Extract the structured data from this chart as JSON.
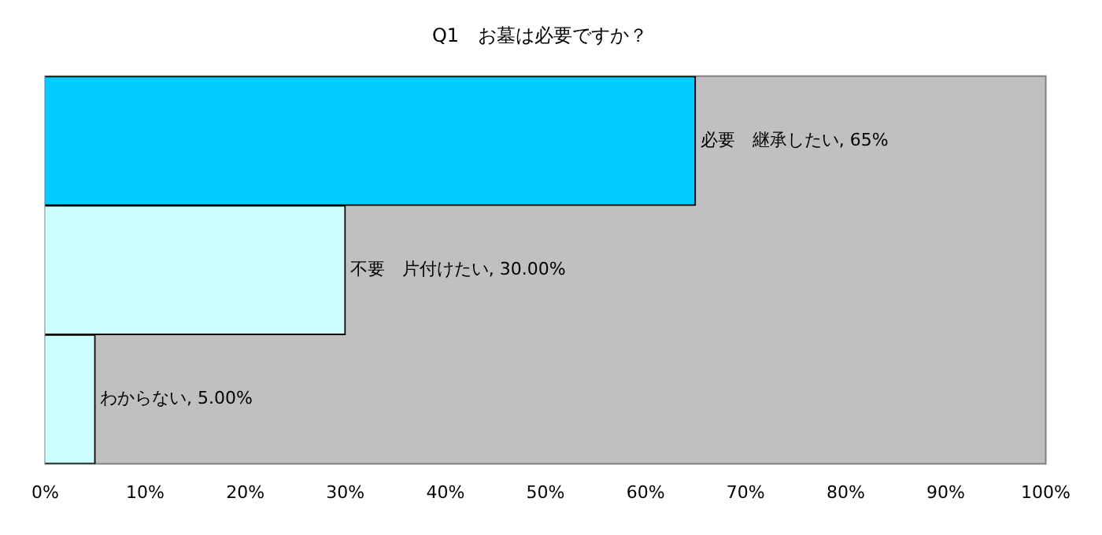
{
  "chart_data": {
    "type": "bar",
    "orientation": "horizontal",
    "title": "Q1　お墓は必要ですか？",
    "categories": [
      null,
      null,
      null
    ],
    "values": [
      65,
      30,
      5
    ],
    "colors": [
      "#00ccff",
      "#ccffff",
      "#ccffff"
    ],
    "value_labels": [
      "必要　継承したい, 65%",
      "不要　片付けたい, 30.00%",
      "わからない, 5.00%"
    ],
    "xlim": [
      0,
      100
    ],
    "xticks": [
      {
        "value": 0,
        "label": "0%"
      },
      {
        "value": 10,
        "label": "10%"
      },
      {
        "value": 20,
        "label": "20%"
      },
      {
        "value": 30,
        "label": "30%"
      },
      {
        "value": 40,
        "label": "40%"
      },
      {
        "value": 50,
        "label": "50%"
      },
      {
        "value": 60,
        "label": "60%"
      },
      {
        "value": 70,
        "label": "70%"
      },
      {
        "value": 80,
        "label": "80%"
      },
      {
        "value": 90,
        "label": "90%"
      },
      {
        "value": 100,
        "label": "100%"
      }
    ],
    "grid": false,
    "legend": false,
    "tick_labels": "x"
  }
}
